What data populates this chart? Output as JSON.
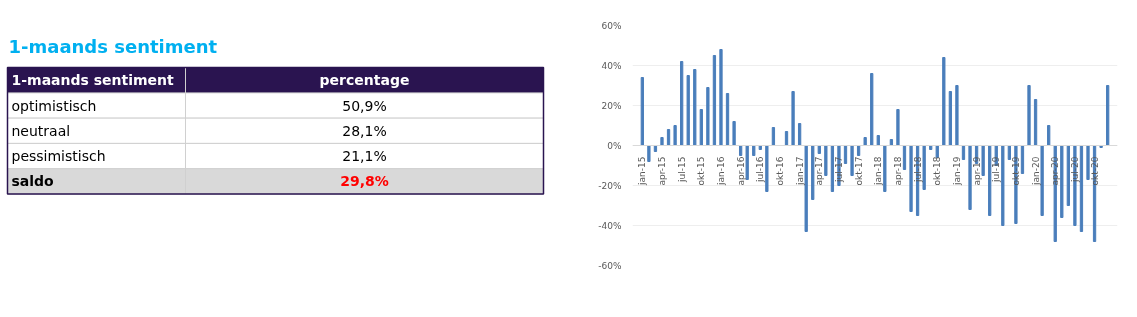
{
  "chart_data": [
    {
      "type": "other",
      "title": "1-maands sentiment",
      "xlabel": "1-maands sentiment",
      "ylabel": "percentage",
      "categories": [
        "optimistisch",
        "neutraal",
        "pessimistisch",
        "saldo"
      ],
      "value_labels": [
        "50,9%",
        "28,1%",
        "21,1%",
        "29,8%"
      ]
    },
    {
      "type": "bar",
      "color": "#4a7ebb",
      "categories": [
        "jan-15",
        null,
        null,
        "apr-15",
        null,
        null,
        "jul-15",
        null,
        null,
        "okt-15",
        null,
        null,
        "jan-16",
        null,
        null,
        "apr-16",
        null,
        null,
        "jul-16",
        null,
        null,
        "okt-16",
        null,
        null,
        "jan-17",
        null,
        null,
        "apr-17",
        null,
        null,
        "jul-17",
        null,
        null,
        "okt-17",
        null,
        null,
        "jan-18",
        null,
        null,
        "apr-18",
        null,
        null,
        "jul-18",
        null,
        null,
        "okt-18",
        null,
        null,
        "jan-19",
        null,
        null,
        "apr-19",
        null,
        null,
        "jul-19",
        null,
        null,
        "okt-19",
        null,
        null,
        "jan-20",
        null,
        null,
        "apr-20",
        null,
        null,
        "jul-20",
        null,
        null,
        "okt-20",
        null,
        null
      ],
      "values": [
        34,
        -8,
        -3,
        4,
        8,
        10,
        42,
        35,
        38,
        18,
        29,
        45,
        48,
        26,
        12,
        -5,
        -17,
        -5,
        -2,
        -23,
        9,
        0,
        7,
        27,
        11,
        -43,
        -27,
        -4,
        -15,
        -23,
        -20,
        -9,
        -15,
        -5,
        4,
        36,
        5,
        -23,
        3,
        18,
        -12,
        -33,
        -35,
        -22,
        -2,
        -6,
        44,
        27,
        30,
        -7,
        -32,
        -9,
        -15,
        -35,
        -10,
        -40,
        -7,
        -39,
        -14,
        30,
        23,
        -35,
        10,
        -48,
        -36,
        -30,
        -40,
        -43,
        -17,
        -48,
        -1,
        30
      ],
      "ylim": [
        -60,
        60
      ],
      "yticks": [
        {
          "value": -60,
          "label": "-60%"
        },
        {
          "value": -40,
          "label": "-40%"
        },
        {
          "value": -20,
          "label": "-20%"
        },
        {
          "value": 0,
          "label": "0%"
        },
        {
          "value": 20,
          "label": "20%"
        },
        {
          "value": 40,
          "label": "40%"
        },
        {
          "value": 60,
          "label": "60%"
        }
      ],
      "grid": "y"
    }
  ]
}
